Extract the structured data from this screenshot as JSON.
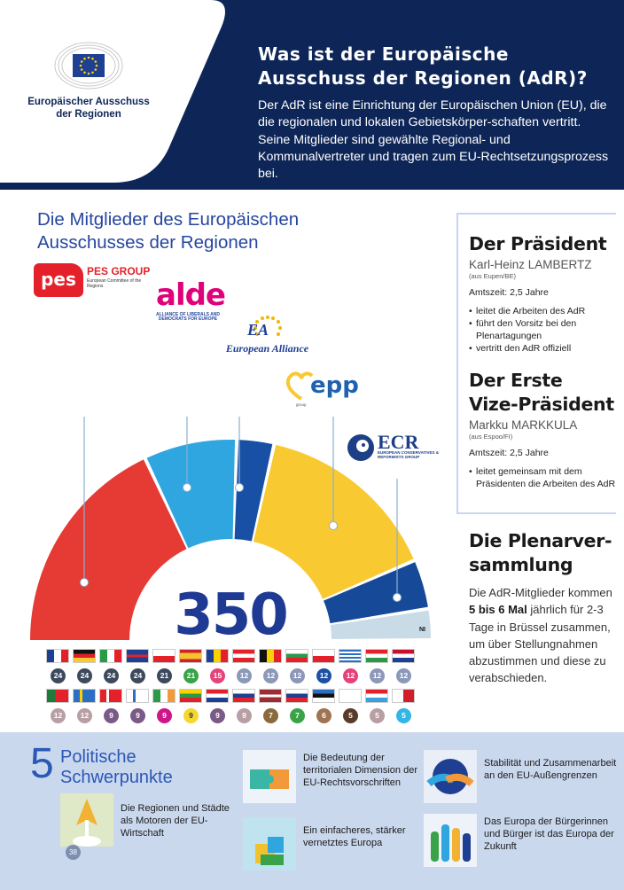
{
  "logo": {
    "name_line1": "Europäischer Ausschuss",
    "name_line2": "der Regionen"
  },
  "header": {
    "title": "Was ist der Europäische Ausschuss der Regionen (AdR)?",
    "text": "Der AdR ist eine Einrichtung der Europäischen Union (EU), die die regionalen und lokalen Gebietskörper-schaften vertritt. Seine Mitglieder sind gewählte Regional- und Kommunalvertreter und tragen zum EU-Rechtsetzungsprozess bei."
  },
  "members": {
    "title": "Die Mitglieder des Europäischen Ausschusses der Regionen",
    "total": "350",
    "ni_label": "NI"
  },
  "parties": {
    "pes": {
      "mark": "pes",
      "name": "PES GROUP",
      "sub": "European Committee of the Regions"
    },
    "alde": {
      "mark": "alde",
      "sub": "ALLIANCE OF LIBERALS AND DEMOCRATS FOR EUROPE"
    },
    "ea": {
      "mark": "EA",
      "name": "European Alliance"
    },
    "epp": {
      "mark": "epp",
      "sub": "group"
    },
    "ecr": {
      "mark": "ECR",
      "sub": "EUROPEAN CONSERVATIVES & REFORMISTS GROUP"
    }
  },
  "chart_data": {
    "type": "hemicycle",
    "title": "Die Mitglieder des Europäischen Ausschusses der Regionen",
    "total": 350,
    "series": [
      {
        "name": "PES",
        "share": 0.36,
        "color": "#e63a35"
      },
      {
        "name": "ALDE",
        "share": 0.15,
        "color": "#2fa6df"
      },
      {
        "name": "EA",
        "share": 0.06,
        "color": "#1850a6"
      },
      {
        "name": "EPP",
        "share": 0.3,
        "color": "#f9c932"
      },
      {
        "name": "ECR",
        "share": 0.08,
        "color": "#164a98"
      },
      {
        "name": "NI",
        "share": 0.05,
        "color": "#c9dbe6"
      }
    ]
  },
  "countries_row1": [
    {
      "country": "FR",
      "count": "24",
      "color": "#3d4a5e"
    },
    {
      "country": "DE",
      "count": "24",
      "color": "#3d4a5e"
    },
    {
      "country": "IT",
      "count": "24",
      "color": "#3d4a5e"
    },
    {
      "country": "UK",
      "count": "24",
      "color": "#3d4a5e"
    },
    {
      "country": "PL",
      "count": "21",
      "color": "#3d4a5e"
    },
    {
      "country": "ES",
      "count": "21",
      "color": "#3aa34a"
    },
    {
      "country": "RO",
      "count": "15",
      "color": "#e5437a"
    },
    {
      "country": "AT",
      "count": "12",
      "color": "#8b98b8"
    },
    {
      "country": "BE",
      "count": "12",
      "color": "#8b98b8"
    },
    {
      "country": "BG",
      "count": "12",
      "color": "#8b98b8"
    },
    {
      "country": "CZ",
      "count": "12",
      "color": "#1f4fa3"
    },
    {
      "country": "EL",
      "count": "12",
      "color": "#e5437a"
    },
    {
      "country": "HU",
      "count": "12",
      "color": "#8b98b8"
    },
    {
      "country": "NL",
      "count": "12",
      "color": "#8b98b8"
    }
  ],
  "countries_row2": [
    {
      "country": "PT",
      "count": "12",
      "color": "#b89fa4"
    },
    {
      "country": "SE",
      "count": "12",
      "color": "#b89fa4"
    },
    {
      "country": "DK",
      "count": "9",
      "color": "#7a5a87"
    },
    {
      "country": "FI",
      "count": "9",
      "color": "#7a5a87"
    },
    {
      "country": "IE",
      "count": "9",
      "color": "#cc168a"
    },
    {
      "country": "LT",
      "count": "9",
      "color": "#f5d730"
    },
    {
      "country": "HR",
      "count": "9",
      "color": "#7a5a87"
    },
    {
      "country": "SK",
      "count": "9",
      "color": "#b89fa4"
    },
    {
      "country": "LV",
      "count": "7",
      "color": "#8a6a3d"
    },
    {
      "country": "SI",
      "count": "7",
      "color": "#3aa34a"
    },
    {
      "country": "EE",
      "count": "6",
      "color": "#a07450"
    },
    {
      "country": "CY",
      "count": "5",
      "color": "#5a3b2a"
    },
    {
      "country": "LU",
      "count": "5",
      "color": "#b89fa4"
    },
    {
      "country": "MT",
      "count": "5",
      "color": "#33b5e5"
    }
  ],
  "president": {
    "heading": "Der Präsident",
    "name": "Karl-Heinz LAMBERTZ",
    "origin": "(aus Eupen/BE)",
    "term": "Amtszeit: 2,5 Jahre",
    "duties": [
      "leitet die Arbeiten des AdR",
      "führt den Vorsitz bei den Plenartagungen",
      "vertritt den AdR offiziell"
    ]
  },
  "vice_president": {
    "heading_line1": "Der Erste",
    "heading_line2": "Vize-Präsident",
    "name": "Markku MARKKULA",
    "origin": "(aus Espoo/FI)",
    "term": "Amtszeit: 2,5 Jahre",
    "duties": [
      "leitet gemeinsam mit dem Präsidenten die Arbeiten des AdR"
    ]
  },
  "plenary": {
    "heading_line1": "Die Plenarver-",
    "heading_line2": "sammlung",
    "text_before": "Die AdR-Mitglieder kommen ",
    "text_bold": "5 bis 6 Mal",
    "text_after": " jährlich für 2-3 Tage in Brüssel zusammen, um über Stellungnahmen abzustimmen und diese zu verabschieden."
  },
  "priorities": {
    "digit": "5",
    "title_line1": "Politische",
    "title_line2": "Schwerpunkte",
    "items": [
      "Die Regionen und Städte als Motoren der EU-Wirtschaft",
      "Die Bedeutung der territorialen Dimension der EU-Rechtsvorschriften",
      "Ein einfacheres, stärker vernetztes Europa",
      "Stabilität und Zusammenarbeit an den EU-Außengrenzen",
      "Das Europa der Bürgerinnen und Bürger ist das Europa der Zukunft"
    ]
  },
  "page_number": "38"
}
